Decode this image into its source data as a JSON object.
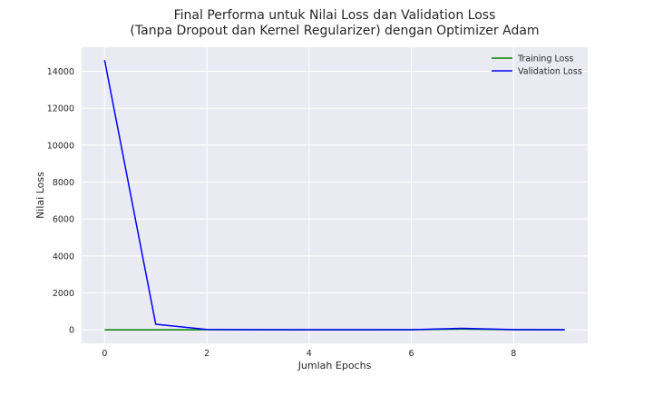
{
  "chart_data": {
    "type": "line",
    "title_line1": "Final Performa untuk Nilai Loss dan Validation Loss",
    "title_line2": "(Tanpa Dropout dan Kernel Regularizer) dengan Optimizer Adam",
    "xlabel": "Jumlah Epochs",
    "ylabel": "Nilai Loss",
    "xlim": [
      -0.45,
      9.45
    ],
    "ylim": [
      -730,
      15300
    ],
    "xticks": [
      0,
      2,
      4,
      6,
      8
    ],
    "yticks": [
      0,
      2000,
      4000,
      6000,
      8000,
      10000,
      12000,
      14000
    ],
    "grid": true,
    "legend_position": "top-right",
    "x": [
      0,
      1,
      2,
      3,
      4,
      5,
      6,
      7,
      8,
      9
    ],
    "series": [
      {
        "name": "Training Loss",
        "color": "#008000",
        "values": [
          0,
          0,
          10,
          5,
          3,
          2,
          5,
          40,
          5,
          3
        ]
      },
      {
        "name": "Validation Loss",
        "color": "#0000ff",
        "values": [
          14600,
          300,
          20,
          10,
          10,
          10,
          10,
          80,
          15,
          10
        ]
      }
    ]
  },
  "style": {
    "plot_background": "#eaeaf2",
    "grid_color": "#ffffff"
  }
}
